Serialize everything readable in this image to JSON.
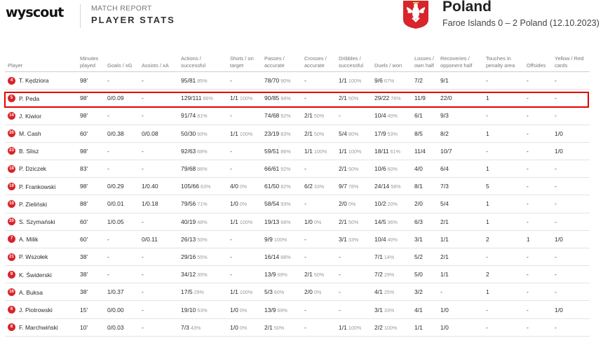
{
  "header": {
    "logo": "wyscout",
    "report_label": "MATCH REPORT",
    "report_title": "PLAYER STATS",
    "team_name": "Poland",
    "match_line": "Faroe Islands 0 – 2 Poland (12.10.2023)"
  },
  "colors": {
    "badge": "#d8242b",
    "highlight": "#e60000"
  },
  "columns": [
    "Player",
    "Minutes played",
    "Goals / xG",
    "Assists / xA",
    "Actions / successful",
    "Shots / on target",
    "Passes / accurate",
    "Crosses / accurate",
    "Dribbles / successful",
    "Duels / won",
    "Losses / own half",
    "Recoveries / opponent half",
    "Touches in penalty area",
    "Offsides",
    "Yellow / Red cards"
  ],
  "highlighted_row_index": 1,
  "players": [
    {
      "num": "4",
      "name": "T. Kędziora",
      "min": "98'",
      "goals": "-",
      "assists": "-",
      "actions": "95/81",
      "actions_pct": "85%",
      "shots": "-",
      "shots_pct": "",
      "passes": "78/70",
      "passes_pct": "90%",
      "crosses": "-",
      "crosses_pct": "",
      "dribbles": "1/1",
      "dribbles_pct": "100%",
      "duels": "9/6",
      "duels_pct": "67%",
      "losses": "7/2",
      "recoveries": "9/1",
      "touches": "-",
      "offsides": "-",
      "cards": "-"
    },
    {
      "num": "5",
      "name": "P. Peda",
      "min": "98'",
      "goals": "0/0.09",
      "assists": "-",
      "actions": "129/111",
      "actions_pct": "86%",
      "shots": "1/1",
      "shots_pct": "100%",
      "passes": "90/85",
      "passes_pct": "94%",
      "crosses": "-",
      "crosses_pct": "",
      "dribbles": "2/1",
      "dribbles_pct": "50%",
      "duels": "29/22",
      "duels_pct": "76%",
      "losses": "11/9",
      "recoveries": "22/0",
      "touches": "1",
      "offsides": "-",
      "cards": "-"
    },
    {
      "num": "14",
      "name": "J. Kiwior",
      "min": "98'",
      "goals": "-",
      "assists": "-",
      "actions": "91/74",
      "actions_pct": "81%",
      "shots": "-",
      "shots_pct": "",
      "passes": "74/68",
      "passes_pct": "92%",
      "crosses": "2/1",
      "crosses_pct": "50%",
      "dribbles": "-",
      "dribbles_pct": "",
      "duels": "10/4",
      "duels_pct": "40%",
      "losses": "6/1",
      "recoveries": "9/3",
      "touches": "-",
      "offsides": "-",
      "cards": "-"
    },
    {
      "num": "20",
      "name": "M. Cash",
      "min": "60'",
      "goals": "0/0.38",
      "assists": "0/0.08",
      "actions": "50/30",
      "actions_pct": "60%",
      "shots": "1/1",
      "shots_pct": "100%",
      "passes": "23/19",
      "passes_pct": "83%",
      "crosses": "2/1",
      "crosses_pct": "50%",
      "dribbles": "5/4",
      "dribbles_pct": "80%",
      "duels": "17/9",
      "duels_pct": "53%",
      "losses": "8/5",
      "recoveries": "8/2",
      "touches": "1",
      "offsides": "-",
      "cards": "1/0"
    },
    {
      "num": "23",
      "name": "B. Slisz",
      "min": "98'",
      "goals": "-",
      "assists": "-",
      "actions": "92/63",
      "actions_pct": "68%",
      "shots": "-",
      "shots_pct": "",
      "passes": "59/51",
      "passes_pct": "86%",
      "crosses": "1/1",
      "crosses_pct": "100%",
      "dribbles": "1/1",
      "dribbles_pct": "100%",
      "duels": "18/11",
      "duels_pct": "61%",
      "losses": "11/4",
      "recoveries": "10/7",
      "touches": "-",
      "offsides": "-",
      "cards": "1/0"
    },
    {
      "num": "18",
      "name": "P. Dziczek",
      "min": "83'",
      "goals": "-",
      "assists": "-",
      "actions": "79/68",
      "actions_pct": "86%",
      "shots": "-",
      "shots_pct": "",
      "passes": "66/61",
      "passes_pct": "92%",
      "crosses": "-",
      "crosses_pct": "",
      "dribbles": "2/1",
      "dribbles_pct": "50%",
      "duels": "10/6",
      "duels_pct": "60%",
      "losses": "4/0",
      "recoveries": "6/4",
      "touches": "1",
      "offsides": "-",
      "cards": "-"
    },
    {
      "num": "19",
      "name": "P. Frankowski",
      "min": "98'",
      "goals": "0/0.29",
      "assists": "1/0.40",
      "actions": "105/66",
      "actions_pct": "63%",
      "shots": "4/0",
      "shots_pct": "0%",
      "passes": "61/50",
      "passes_pct": "82%",
      "crosses": "6/2",
      "crosses_pct": "33%",
      "dribbles": "9/7",
      "dribbles_pct": "78%",
      "duels": "24/14",
      "duels_pct": "58%",
      "losses": "8/1",
      "recoveries": "7/3",
      "touches": "5",
      "offsides": "-",
      "cards": "-"
    },
    {
      "num": "10",
      "name": "P. Zieliński",
      "min": "88'",
      "goals": "0/0.01",
      "assists": "1/0.18",
      "actions": "79/56",
      "actions_pct": "71%",
      "shots": "1/0",
      "shots_pct": "0%",
      "passes": "58/54",
      "passes_pct": "93%",
      "crosses": "-",
      "crosses_pct": "",
      "dribbles": "2/0",
      "dribbles_pct": "0%",
      "duels": "10/2",
      "duels_pct": "20%",
      "losses": "2/0",
      "recoveries": "5/4",
      "touches": "1",
      "offsides": "-",
      "cards": "-"
    },
    {
      "num": "20",
      "name": "S. Szymański",
      "min": "60'",
      "goals": "1/0.05",
      "assists": "-",
      "actions": "40/19",
      "actions_pct": "48%",
      "shots": "1/1",
      "shots_pct": "100%",
      "passes": "19/13",
      "passes_pct": "68%",
      "crosses": "1/0",
      "crosses_pct": "0%",
      "dribbles": "2/1",
      "dribbles_pct": "50%",
      "duels": "14/5",
      "duels_pct": "36%",
      "losses": "6/3",
      "recoveries": "2/1",
      "touches": "1",
      "offsides": "-",
      "cards": "-"
    },
    {
      "num": "7",
      "name": "A. Milik",
      "min": "60'",
      "goals": "-",
      "assists": "0/0.11",
      "actions": "26/13",
      "actions_pct": "50%",
      "shots": "-",
      "shots_pct": "",
      "passes": "9/9",
      "passes_pct": "100%",
      "crosses": "-",
      "crosses_pct": "",
      "dribbles": "3/1",
      "dribbles_pct": "33%",
      "duels": "10/4",
      "duels_pct": "40%",
      "losses": "3/1",
      "recoveries": "1/1",
      "touches": "2",
      "offsides": "1",
      "cards": "1/0"
    },
    {
      "num": "21",
      "name": "P. Wszołek",
      "min": "38'",
      "goals": "-",
      "assists": "-",
      "actions": "29/16",
      "actions_pct": "55%",
      "shots": "-",
      "shots_pct": "",
      "passes": "16/14",
      "passes_pct": "88%",
      "crosses": "-",
      "crosses_pct": "",
      "dribbles": "-",
      "dribbles_pct": "",
      "duels": "7/1",
      "duels_pct": "14%",
      "losses": "5/2",
      "recoveries": "2/1",
      "touches": "-",
      "offsides": "-",
      "cards": "-"
    },
    {
      "num": "9",
      "name": "K. Świderski",
      "min": "38'",
      "goals": "-",
      "assists": "-",
      "actions": "34/12",
      "actions_pct": "35%",
      "shots": "-",
      "shots_pct": "",
      "passes": "13/9",
      "passes_pct": "69%",
      "crosses": "2/1",
      "crosses_pct": "50%",
      "dribbles": "-",
      "dribbles_pct": "",
      "duels": "7/2",
      "duels_pct": "29%",
      "losses": "5/0",
      "recoveries": "1/1",
      "touches": "2",
      "offsides": "-",
      "cards": "-"
    },
    {
      "num": "16",
      "name": "A. Buksa",
      "min": "38'",
      "goals": "1/0.37",
      "assists": "-",
      "actions": "17/5",
      "actions_pct": "29%",
      "shots": "1/1",
      "shots_pct": "100%",
      "passes": "5/3",
      "passes_pct": "60%",
      "crosses": "2/0",
      "crosses_pct": "0%",
      "dribbles": "-",
      "dribbles_pct": "",
      "duels": "4/1",
      "duels_pct": "25%",
      "losses": "3/2",
      "recoveries": "-",
      "touches": "1",
      "offsides": "-",
      "cards": "-"
    },
    {
      "num": "6",
      "name": "J. Piotrowski",
      "min": "15'",
      "goals": "0/0.00",
      "assists": "-",
      "actions": "19/10",
      "actions_pct": "53%",
      "shots": "1/0",
      "shots_pct": "0%",
      "passes": "13/9",
      "passes_pct": "69%",
      "crosses": "-",
      "crosses_pct": "",
      "dribbles": "-",
      "dribbles_pct": "",
      "duels": "3/1",
      "duels_pct": "33%",
      "losses": "4/1",
      "recoveries": "1/0",
      "touches": "-",
      "offsides": "-",
      "cards": "1/0"
    },
    {
      "num": "8",
      "name": "F. Marchwiński",
      "min": "10'",
      "goals": "0/0.03",
      "assists": "-",
      "actions": "7/3",
      "actions_pct": "43%",
      "shots": "1/0",
      "shots_pct": "0%",
      "passes": "2/1",
      "passes_pct": "50%",
      "crosses": "-",
      "crosses_pct": "",
      "dribbles": "1/1",
      "dribbles_pct": "100%",
      "duels": "2/2",
      "duels_pct": "100%",
      "losses": "1/1",
      "recoveries": "1/0",
      "touches": "-",
      "offsides": "-",
      "cards": "-"
    }
  ]
}
